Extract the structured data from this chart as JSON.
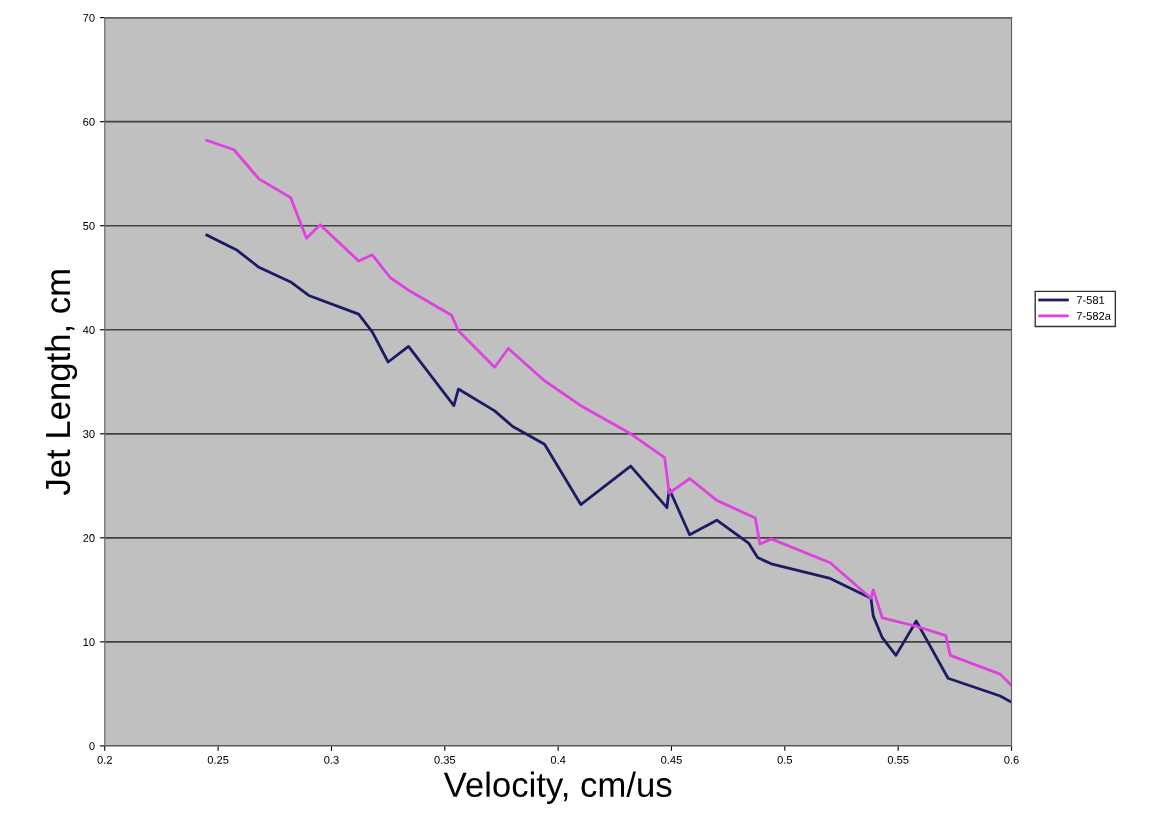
{
  "chart_data": {
    "type": "line",
    "xlabel": "Velocity, cm/us",
    "ylabel": "Jet Length, cm",
    "xlim": [
      0.2,
      0.6
    ],
    "xticks": [
      0.2,
      0.25,
      0.3,
      0.35,
      0.4,
      0.45,
      0.5,
      0.55,
      0.6
    ],
    "ylim": [
      0,
      70
    ],
    "yticks": [
      0,
      10,
      20,
      30,
      40,
      50,
      60,
      70
    ],
    "grid": "y",
    "legend": "right",
    "marker": "none",
    "line_style": "solid",
    "series": [
      {
        "name": "7-581",
        "color": "#1c1c64",
        "x": [
          0.245,
          0.258,
          0.268,
          0.282,
          0.29,
          0.312,
          0.318,
          0.325,
          0.334,
          0.354,
          0.356,
          0.372,
          0.38,
          0.394,
          0.41,
          0.432,
          0.448,
          0.449,
          0.458,
          0.47,
          0.484,
          0.488,
          0.494,
          0.52,
          0.538,
          0.539,
          0.543,
          0.549,
          0.558,
          0.572,
          0.595,
          0.6
        ],
        "values": [
          49.1,
          47.7,
          46.0,
          44.6,
          43.3,
          41.5,
          39.8,
          36.9,
          38.4,
          32.7,
          34.3,
          32.2,
          30.7,
          29.0,
          23.2,
          26.9,
          22.9,
          24.7,
          20.3,
          21.7,
          19.5,
          18.1,
          17.5,
          16.1,
          14.2,
          12.5,
          10.4,
          8.7,
          12.0,
          6.5,
          4.8,
          4.2
        ]
      },
      {
        "name": "7-582a",
        "color": "#e040e0",
        "x": [
          0.245,
          0.257,
          0.268,
          0.282,
          0.289,
          0.295,
          0.312,
          0.318,
          0.326,
          0.334,
          0.353,
          0.356,
          0.372,
          0.378,
          0.394,
          0.41,
          0.432,
          0.447,
          0.449,
          0.458,
          0.47,
          0.487,
          0.489,
          0.494,
          0.52,
          0.538,
          0.539,
          0.543,
          0.558,
          0.571,
          0.573,
          0.595,
          0.6
        ],
        "values": [
          58.2,
          57.3,
          54.5,
          52.7,
          48.8,
          50.1,
          46.6,
          47.2,
          45.0,
          43.8,
          41.4,
          39.9,
          36.4,
          38.2,
          35.1,
          32.7,
          30.0,
          27.7,
          24.3,
          25.7,
          23.6,
          21.9,
          19.4,
          19.9,
          17.6,
          14.2,
          15.0,
          12.3,
          11.5,
          10.6,
          8.7,
          6.9,
          5.8
        ]
      }
    ]
  }
}
